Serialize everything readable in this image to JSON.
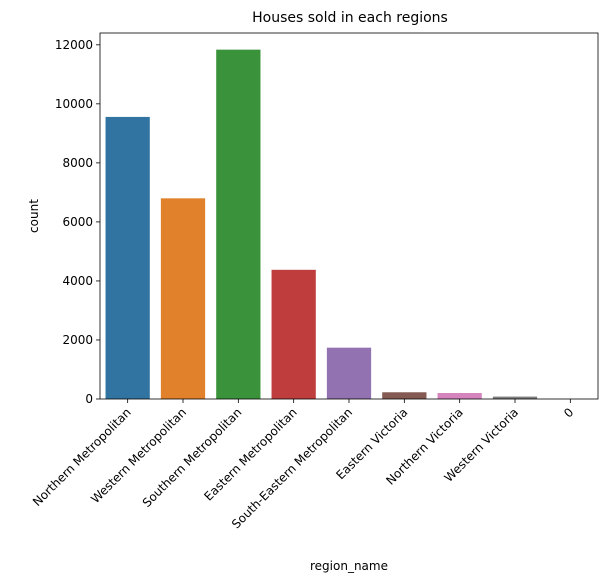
{
  "chart_data": {
    "type": "bar",
    "title": "Houses sold in each regions",
    "xlabel": "region_name",
    "ylabel": "count",
    "categories": [
      "Northern Metropolitan",
      "Western Metropolitan",
      "Southern Metropolitan",
      "Eastern Metropolitan",
      "South-Eastern Metropolitan",
      "Eastern Victoria",
      "Northern Victoria",
      "Western Victoria",
      "0"
    ],
    "values": [
      9557,
      6799,
      11836,
      4377,
      1739,
      228,
      203,
      82,
      3
    ],
    "colors": [
      "#3274a1",
      "#e1812c",
      "#3a923a",
      "#c03d3e",
      "#9372b2",
      "#845b53",
      "#d684bd",
      "#7f7f7f",
      "#a9aa35"
    ],
    "ylim": [
      0,
      12400
    ],
    "yticks": [
      0,
      2000,
      4000,
      6000,
      8000,
      10000,
      12000
    ],
    "grid": false,
    "legend": "none"
  }
}
